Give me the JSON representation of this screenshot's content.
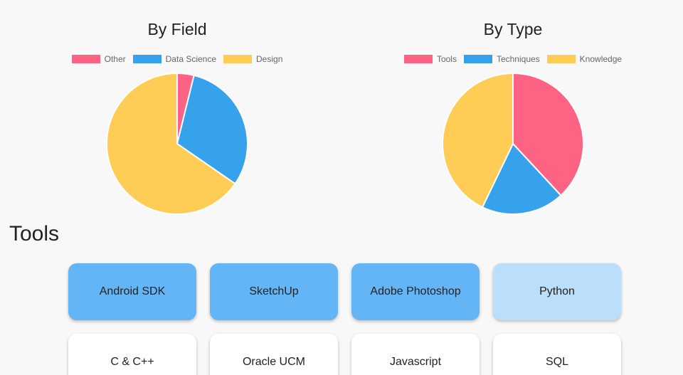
{
  "charts": {
    "field": {
      "title": "By Field",
      "legend": [
        {
          "label": "Other",
          "color": "#ff6384"
        },
        {
          "label": "Data Science",
          "color": "#36a2eb"
        },
        {
          "label": "Design",
          "color": "#ffcd56"
        }
      ]
    },
    "type": {
      "title": "By Type",
      "legend": [
        {
          "label": "Tools",
          "color": "#ff6384"
        },
        {
          "label": "Techniques",
          "color": "#36a2eb"
        },
        {
          "label": "Knowledge",
          "color": "#ffcd56"
        }
      ]
    }
  },
  "chart_data": [
    {
      "type": "pie",
      "title": "By Field",
      "categories": [
        "Other",
        "Data Science",
        "Design"
      ],
      "values": [
        1,
        8,
        17
      ],
      "colors": [
        "#ff6384",
        "#36a2eb",
        "#ffcd56"
      ],
      "legend": "top"
    },
    {
      "type": "pie",
      "title": "By Type",
      "categories": [
        "Tools",
        "Techniques",
        "Knowledge"
      ],
      "values": [
        8,
        4,
        9
      ],
      "colors": [
        "#ff6384",
        "#36a2eb",
        "#ffcd56"
      ],
      "legend": "top"
    }
  ],
  "section": {
    "title": "Tools"
  },
  "tools": [
    {
      "label": "Android SDK",
      "bg": "#64b5f6"
    },
    {
      "label": "SketchUp",
      "bg": "#64b5f6"
    },
    {
      "label": "Adobe Photoshop",
      "bg": "#64b5f6"
    },
    {
      "label": "Python",
      "bg": "#bbdefb"
    },
    {
      "label": "C & C++",
      "bg": "#ffffff"
    },
    {
      "label": "Oracle UCM",
      "bg": "#ffffff"
    },
    {
      "label": "Javascript",
      "bg": "#ffffff"
    },
    {
      "label": "SQL",
      "bg": "#ffffff"
    }
  ]
}
